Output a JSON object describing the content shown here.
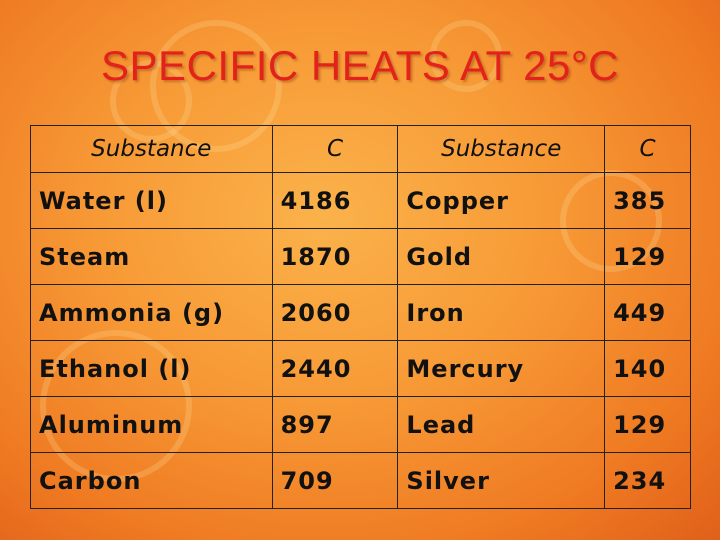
{
  "header": {
    "title": "SPECIFIC HEATS AT 25°C"
  },
  "table": {
    "columns": [
      "Substance",
      "C",
      "Substance",
      "C"
    ],
    "rows": [
      [
        "Water (l)",
        4186,
        "Copper",
        385
      ],
      [
        "Steam",
        1870,
        "Gold",
        129
      ],
      [
        "Ammonia (g)",
        2060,
        "Iron",
        449
      ],
      [
        "Ethanol (l)",
        2440,
        "Mercury",
        140
      ],
      [
        "Aluminum",
        897,
        "Lead",
        129
      ],
      [
        "Carbon",
        709,
        "Silver",
        234
      ]
    ]
  }
}
